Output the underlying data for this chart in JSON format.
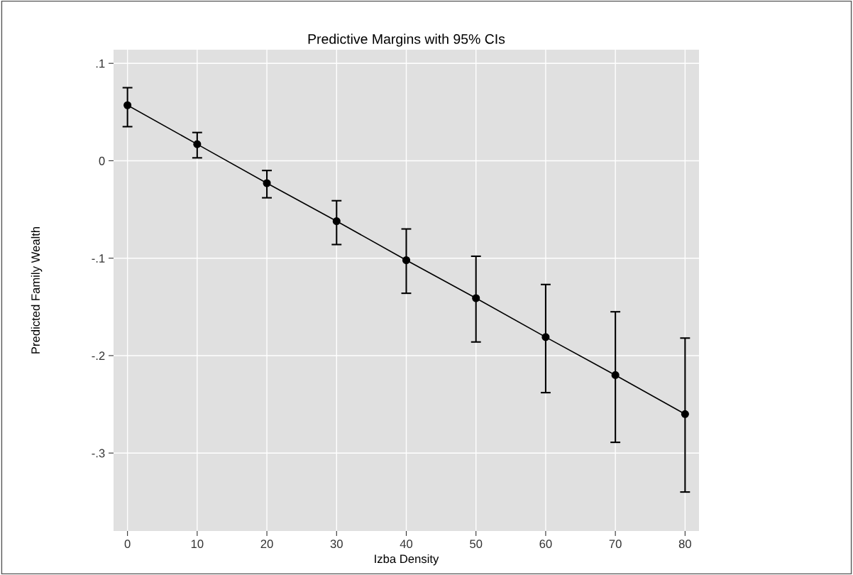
{
  "chart_data": {
    "type": "line",
    "title": "Predictive Margins with 95% CIs",
    "xlabel": "Izba Density",
    "ylabel": "Predicted Family Wealth",
    "x": [
      0,
      10,
      20,
      30,
      40,
      50,
      60,
      70,
      80
    ],
    "series": [
      {
        "color": "#000000",
        "values": [
          0.057,
          0.017,
          -0.023,
          -0.062,
          -0.102,
          -0.141,
          -0.181,
          -0.22,
          -0.26
        ],
        "errors": [
          [
            0.035,
            0.075
          ],
          [
            0.003,
            0.029
          ],
          [
            -0.038,
            -0.01
          ],
          [
            -0.086,
            -0.041
          ],
          [
            -0.136,
            -0.07
          ],
          [
            -0.186,
            -0.098
          ],
          [
            -0.238,
            -0.127
          ],
          [
            -0.289,
            -0.155
          ],
          [
            -0.34,
            -0.182
          ]
        ]
      }
    ],
    "xlim": [
      -2,
      82
    ],
    "xticks": [
      0,
      10,
      20,
      30,
      40,
      50,
      60,
      70,
      80
    ],
    "ylim": [
      -0.38,
      0.114
    ],
    "yticks": [
      {
        "value": 0.1,
        "label": ".1"
      },
      0,
      {
        "value": -0.1,
        "label": "-.1"
      },
      {
        "value": -0.2,
        "label": "-.2"
      },
      {
        "value": -0.3,
        "label": "-.3"
      }
    ],
    "grid": true,
    "marker": "circle",
    "line_style": "solid",
    "legend": false
  }
}
